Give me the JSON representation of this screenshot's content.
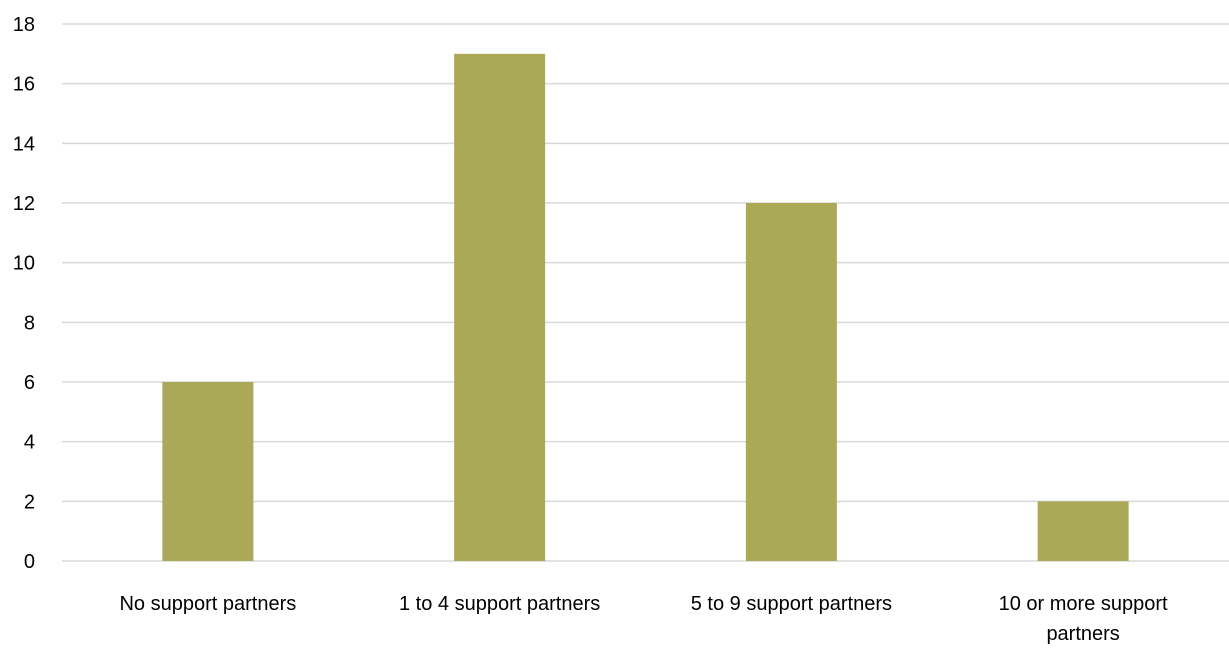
{
  "chart_data": {
    "type": "bar",
    "categories": [
      [
        "No support partners"
      ],
      [
        "1 to 4 support partners"
      ],
      [
        "5 to 9 support partners"
      ],
      [
        "10 or more support",
        "partners"
      ]
    ],
    "series": [
      {
        "values": [
          6,
          17,
          12,
          2
        ],
        "color": "#aaa957"
      }
    ],
    "ylim": [
      0,
      18
    ],
    "yticks": [
      "0",
      "2",
      "4",
      "6",
      "8",
      "10",
      "12",
      "14",
      "16",
      "18"
    ],
    "grid": true,
    "gridColor": "#d9d9d9",
    "legend": "none"
  }
}
